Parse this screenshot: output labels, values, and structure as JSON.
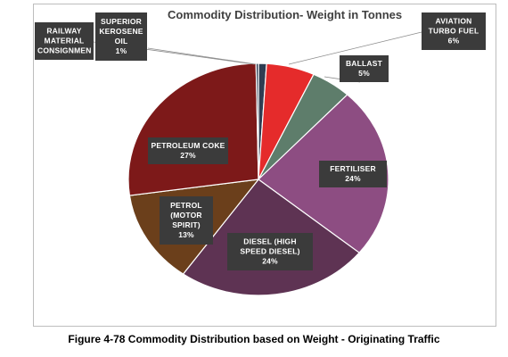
{
  "chart_data": {
    "type": "pie",
    "title": "Commodity Distribution- Weight in Tonnes",
    "slices": [
      {
        "name": "SUPERIOR KEROSENE OIL",
        "label_lines": [
          "SUPERIOR",
          "KEROSENE",
          "OIL"
        ],
        "pct_text": "1%",
        "value": 1,
        "color": "#2f3d52"
      },
      {
        "name": "AVIATION TURBO FUEL",
        "label_lines": [
          "AVIATION",
          "TURBO FUEL"
        ],
        "pct_text": "6%",
        "value": 6,
        "color": "#e52b2b"
      },
      {
        "name": "BALLAST",
        "label_lines": [
          "BALLAST"
        ],
        "pct_text": "5%",
        "value": 5,
        "color": "#5e7d6b"
      },
      {
        "name": "FERTILISER",
        "label_lines": [
          "FERTILISER"
        ],
        "pct_text": "24%",
        "value": 24,
        "color": "#8d4d82"
      },
      {
        "name": "DIESEL (HIGH SPEED DIESEL)",
        "label_lines": [
          "DIESEL (HIGH",
          "SPEED DIESEL)"
        ],
        "pct_text": "24%",
        "value": 24,
        "color": "#5e3353"
      },
      {
        "name": "PETROL (MOTOR SPIRIT)",
        "label_lines": [
          "PETROL",
          "(MOTOR",
          "SPIRIT)"
        ],
        "pct_text": "13%",
        "value": 13,
        "color": "#6b3f1b"
      },
      {
        "name": "PETROLEUM COKE",
        "label_lines": [
          "PETROLEUM COKE"
        ],
        "pct_text": "27%",
        "value": 27,
        "color": "#7d1919"
      },
      {
        "name": "RAILWAY MATERIAL CONSIGNMENT",
        "label_lines": [
          "RAILWAY",
          "MATERIAL",
          "CONSIGNMEN"
        ],
        "pct_text": "",
        "value": 0.3,
        "color": "#2b3b52"
      }
    ]
  },
  "caption": "Figure 4-78 Commodity Distribution based on Weight - Originating Traffic"
}
